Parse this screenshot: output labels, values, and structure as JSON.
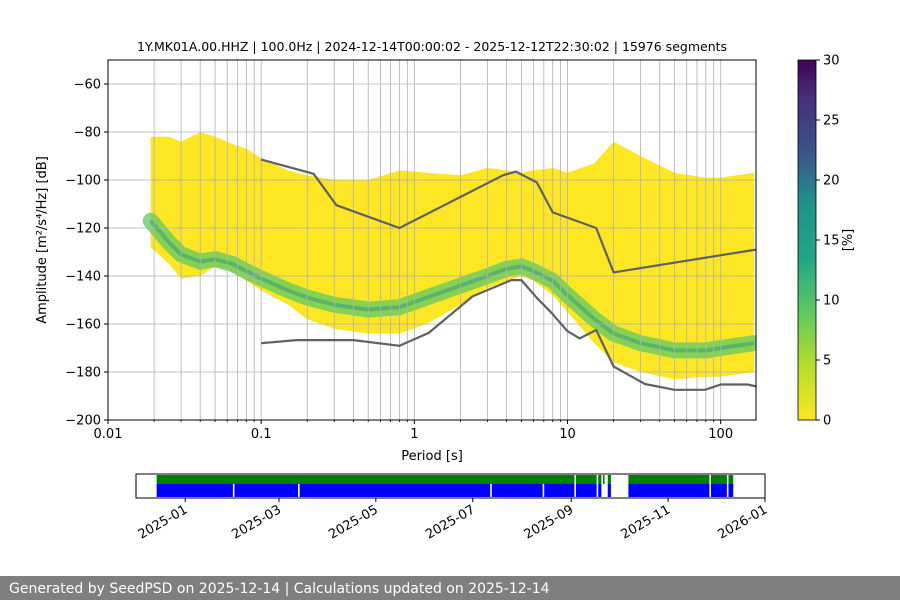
{
  "chart_data": [
    {
      "type": "heatmap",
      "title": "1Y.MK01A.00.HHZ | 100.0Hz | 2024-12-14T00:00:02 - 2025-12-12T22:30:02 | 15976 segments",
      "xlabel": "Period [s]",
      "ylabel": "Amplitude [m²/s⁴/Hz] [dB]",
      "x_scale": "log",
      "xlim": [
        0.01,
        170
      ],
      "ylim": [
        -200,
        -50
      ],
      "x_ticks": [
        0.01,
        0.1,
        1,
        10,
        100
      ],
      "x_tick_labels": [
        "0.01",
        "0.1",
        "1",
        "10",
        "100"
      ],
      "y_ticks": [
        -200,
        -180,
        -160,
        -140,
        -120,
        -100,
        -80,
        -60
      ],
      "y_tick_labels": [
        "−200",
        "−180",
        "−160",
        "−140",
        "−120",
        "−100",
        "−80",
        "−60"
      ],
      "grid": true,
      "colorbar": {
        "label": "[%]",
        "range": [
          0,
          30
        ],
        "ticks": [
          0,
          5,
          10,
          15,
          20,
          25,
          30
        ],
        "tick_labels": [
          "0",
          "5",
          "10",
          "15",
          "20",
          "25",
          "30"
        ],
        "colors": [
          "#fde725",
          "#5ec962",
          "#21918c",
          "#3b528b",
          "#440154"
        ]
      },
      "density": {
        "period": [
          0.019,
          0.025,
          0.03,
          0.04,
          0.05,
          0.065,
          0.08,
          0.1,
          0.15,
          0.2,
          0.3,
          0.5,
          0.8,
          1.2,
          2,
          3,
          4,
          5,
          6,
          8,
          10,
          15,
          20,
          30,
          50,
          80,
          100,
          165
        ],
        "mode": [
          -117,
          -126,
          -131,
          -134,
          -133,
          -135,
          -138,
          -141,
          -146,
          -149,
          -152,
          -154,
          -153,
          -149,
          -144,
          -140,
          -137,
          -136,
          -138,
          -142,
          -148,
          -158,
          -164,
          -168,
          -171,
          -171,
          -170,
          -168
        ],
        "upper": [
          -82,
          -82,
          -84,
          -80,
          -82,
          -85,
          -87,
          -91,
          -96,
          -98,
          -100,
          -100,
          -96,
          -97,
          -98,
          -95,
          -96,
          -97,
          -96,
          -95,
          -97,
          -93,
          -84,
          -90,
          -97,
          -99,
          -99,
          -97
        ],
        "lower": [
          -128,
          -135,
          -141,
          -140,
          -136,
          -138,
          -142,
          -146,
          -152,
          -158,
          -162,
          -164,
          -164,
          -160,
          -152,
          -145,
          -142,
          -140,
          -142,
          -148,
          -155,
          -168,
          -176,
          -180,
          -183,
          -182,
          -182,
          -180
        ]
      },
      "series": [
        {
          "name": "",
          "color": "#606060",
          "x": [
            0.1,
            0.22,
            0.31,
            0.8,
            3.8,
            4.6,
            6.3,
            8,
            15.4,
            20,
            170
          ],
          "y": [
            -91.5,
            -97.4,
            -110.5,
            -120,
            -98,
            -96.5,
            -101,
            -113.5,
            -120,
            -138.5,
            -129
          ]
        },
        {
          "name": "",
          "color": "#606060",
          "x": [
            0.1,
            0.17,
            0.4,
            0.8,
            1.24,
            2.4,
            4.3,
            5,
            6.3,
            7.9,
            10,
            12,
            15.4,
            20,
            32,
            50,
            79,
            100,
            150,
            170
          ],
          "y": [
            -168,
            -166.7,
            -166.7,
            -169.1,
            -163.7,
            -148.5,
            -141.7,
            -141.7,
            -149.1,
            -155.5,
            -163,
            -166,
            -162.5,
            -177.7,
            -185,
            -187.4,
            -187.4,
            -185.2,
            -185.2,
            -186
          ]
        }
      ]
    },
    {
      "type": "timeline",
      "x_tick_labels": [
        "2025-01",
        "2025-03",
        "2025-05",
        "2025-07",
        "2025-09",
        "2025-11",
        "2026-01"
      ],
      "green_color": "#008000",
      "blue_color": "#0000ff",
      "green_segments": [
        [
          "2024-12-14",
          "2025-09-03"
        ],
        [
          "2025-09-04",
          "2025-09-17"
        ],
        [
          "2025-09-18",
          "2025-09-20"
        ],
        [
          "2025-09-21",
          "2025-09-22"
        ],
        [
          "2025-09-24",
          "2025-09-26"
        ],
        [
          "2025-10-07",
          "2025-11-27"
        ],
        [
          "2025-11-28",
          "2025-12-08"
        ],
        [
          "2025-12-09",
          "2025-12-12"
        ]
      ],
      "blue_segments": [
        [
          "2024-12-14",
          "2025-01-31"
        ],
        [
          "2025-02-01",
          "2025-03-13"
        ],
        [
          "2025-03-14",
          "2025-07-12"
        ],
        [
          "2025-07-13",
          "2025-08-14"
        ],
        [
          "2025-08-15",
          "2025-09-03"
        ],
        [
          "2025-09-04",
          "2025-09-17"
        ],
        [
          "2025-09-18",
          "2025-09-20"
        ],
        [
          "2025-09-24",
          "2025-09-26"
        ],
        [
          "2025-10-07",
          "2025-11-27"
        ],
        [
          "2025-11-28",
          "2025-12-08"
        ],
        [
          "2025-12-09",
          "2025-12-12"
        ]
      ]
    }
  ],
  "footer": {
    "text": "Generated by SeedPSD on 2025-12-14 | Calculations updated on 2025-12-14"
  }
}
